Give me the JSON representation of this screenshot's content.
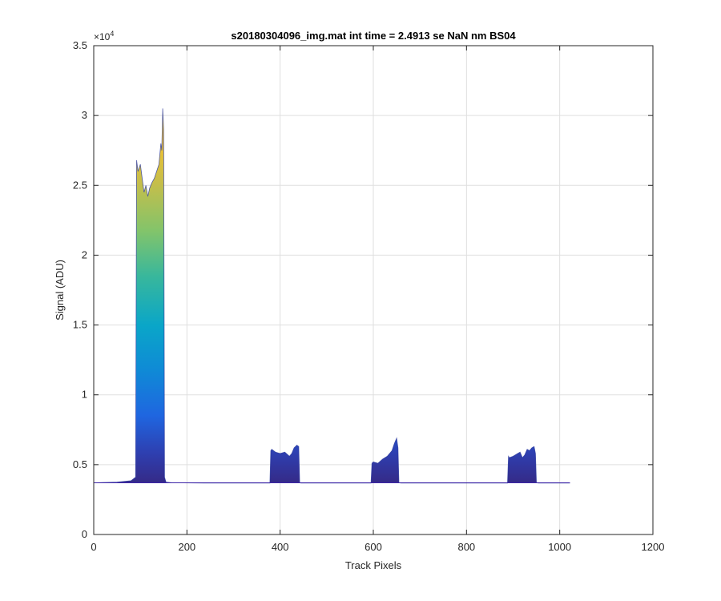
{
  "chart_data": {
    "type": "area",
    "title": "s20180304096_img.mat int time = 2.4913 se  NaN nm BS04",
    "xlabel": "Track Pixels",
    "ylabel": "Signal (ADU)",
    "xlim": [
      0,
      1200
    ],
    "ylim": [
      0,
      35000
    ],
    "xticks": [
      0,
      200,
      400,
      600,
      800,
      1000,
      1200
    ],
    "xtick_labels": [
      "0",
      "200",
      "400",
      "600",
      "800",
      "1000",
      "1200"
    ],
    "yticks": [
      0,
      5000,
      10000,
      15000,
      20000,
      25000,
      30000,
      35000
    ],
    "ytick_labels": [
      "0",
      "0.5",
      "1",
      "1.5",
      "2",
      "2.5",
      "3",
      "3.5"
    ],
    "y_exponent_base": "×10",
    "y_exponent_power": "4",
    "grid": true,
    "colormap": [
      "#3e26a8",
      "#2b65fa",
      "#0f9bd9",
      "#2fb7a9",
      "#7fcb6b",
      "#c9c042",
      "#f9d425"
    ],
    "baseline": 3700,
    "series": [
      {
        "x": [
          0,
          50,
          80,
          90,
          92,
          95,
          100,
          104,
          108,
          112,
          116,
          120,
          125,
          130,
          135,
          140,
          144,
          146,
          148,
          150,
          152,
          155,
          170,
          250,
          300,
          378,
          380,
          382,
          390,
          400,
          410,
          420,
          425,
          430,
          436,
          440,
          442,
          445,
          460,
          550,
          595,
          597,
          600,
          610,
          620,
          630,
          640,
          645,
          650,
          653,
          655,
          660,
          700,
          800,
          888,
          890,
          892,
          900,
          910,
          915,
          920,
          925,
          930,
          935,
          940,
          945,
          948,
          950,
          955,
          1000,
          1022
        ],
        "y": [
          3700,
          3750,
          3850,
          4100,
          26800,
          26000,
          26500,
          25500,
          24500,
          25000,
          24200,
          24800,
          25200,
          25500,
          26000,
          26500,
          28000,
          27500,
          30500,
          29000,
          4100,
          3750,
          3700,
          3680,
          3680,
          3680,
          6000,
          6100,
          5900,
          5800,
          5900,
          5600,
          5800,
          6200,
          6400,
          6300,
          3700,
          3680,
          3680,
          3680,
          3680,
          5100,
          5200,
          5100,
          5400,
          5600,
          6000,
          6500,
          6900,
          6200,
          3700,
          3680,
          3680,
          3680,
          3680,
          5600,
          5500,
          5600,
          5800,
          5900,
          5500,
          5700,
          6100,
          6000,
          6200,
          6300,
          5800,
          3700,
          3680,
          3680,
          3680
        ]
      }
    ]
  }
}
